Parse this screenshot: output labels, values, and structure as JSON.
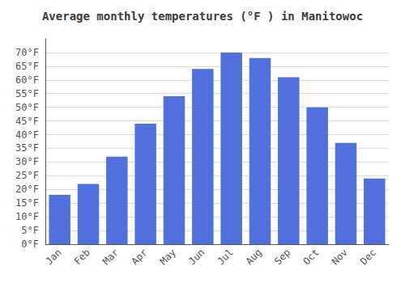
{
  "chart_data": {
    "type": "bar",
    "title": "Average monthly temperatures (°F ) in Manitowoc",
    "categories": [
      "Jan",
      "Feb",
      "Mar",
      "Apr",
      "May",
      "Jun",
      "Jul",
      "Aug",
      "Sep",
      "Oct",
      "Nov",
      "Dec"
    ],
    "values": [
      18,
      22,
      32,
      44,
      54,
      64,
      70,
      68,
      61,
      50,
      37,
      24
    ],
    "ylim": [
      0,
      75
    ],
    "yticks": [
      {
        "value": 0,
        "label": "0°F"
      },
      {
        "value": 5,
        "label": "5°F"
      },
      {
        "value": 10,
        "label": "10°F"
      },
      {
        "value": 15,
        "label": "15°F"
      },
      {
        "value": 20,
        "label": "20°F"
      },
      {
        "value": 25,
        "label": "25°F"
      },
      {
        "value": 30,
        "label": "30°F"
      },
      {
        "value": 35,
        "label": "35°F"
      },
      {
        "value": 40,
        "label": "40°F"
      },
      {
        "value": 45,
        "label": "45°F"
      },
      {
        "value": 50,
        "label": "50°F"
      },
      {
        "value": 55,
        "label": "55°F"
      },
      {
        "value": 60,
        "label": "60°F"
      },
      {
        "value": 65,
        "label": "65°F"
      },
      {
        "value": 70,
        "label": "70°F"
      }
    ],
    "grid": true
  }
}
